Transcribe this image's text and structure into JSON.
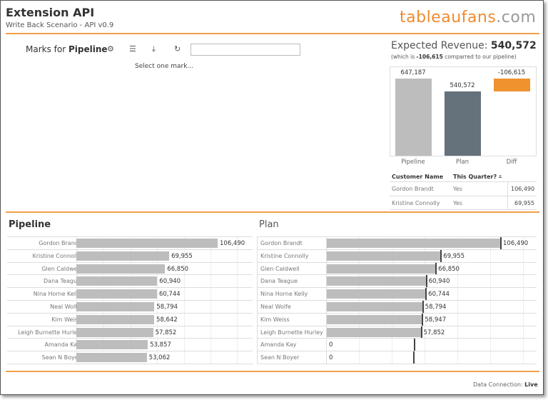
{
  "header": {
    "title": "Extension API",
    "subtitle": "Write Back Scenario - API v0.9",
    "logo_main": "tableaufans",
    "logo_suffix": ".com"
  },
  "toolbar": {
    "marks_prefix": "Marks for",
    "marks_sheet": "Pipeline",
    "icons": [
      "gear-icon",
      "list-icon",
      "download-icon",
      "refresh-icon"
    ],
    "search_value": "",
    "status": "Select one mark..."
  },
  "summary": {
    "label": "Expected Revenue:",
    "value": "540,572",
    "sub_prefix": "(which is",
    "sub_value": "-106,615",
    "sub_suffix": "comparred to our pipeline)"
  },
  "chart_data": [
    {
      "type": "bar",
      "categories": [
        "Pipeline",
        "Plan",
        "Diff"
      ],
      "values": [
        647187,
        540572,
        -106615
      ],
      "labels": [
        "647,187",
        "540,572",
        "-106,615"
      ],
      "colors": [
        "#bdbdbd",
        "#65717b",
        "#f0922e"
      ]
    },
    {
      "type": "bar",
      "title": "Pipeline",
      "categories": [
        "Gordon Brandt",
        "Kristine Connolly",
        "Glen Caldwell",
        "Dana Teague",
        "Nina Horne Kelly",
        "Neal Wolfe",
        "Kim Weiss",
        "Leigh Burnette Hurley",
        "Amanda Kay",
        "Sean N Boyer"
      ],
      "values": [
        106490,
        69955,
        66850,
        60940,
        60744,
        58794,
        58642,
        57852,
        53857,
        53062
      ],
      "labels": [
        "106,490",
        "69,955",
        "66,850",
        "60,940",
        "60,744",
        "58,794",
        "58,642",
        "57,852",
        "53,857",
        "53,062"
      ]
    },
    {
      "type": "bar",
      "title": "Plan",
      "categories": [
        "Gordon Brandt",
        "Kristine Connolly",
        "Glen Caldwell",
        "Dana Teague",
        "Nina Horne Kelly",
        "Neal Wolfe",
        "Kim Weiss",
        "Leigh Burnette Hurley",
        "Amanda Kay",
        "Sean N Boyer"
      ],
      "values": [
        106490,
        69955,
        66850,
        60940,
        60744,
        58794,
        58947,
        57852,
        0,
        0
      ],
      "reference": [
        106490,
        69955,
        66850,
        60940,
        60744,
        58794,
        58642,
        57852,
        53857,
        53062
      ],
      "labels": [
        "106,490",
        "69,955",
        "66,850",
        "60,940",
        "60,744",
        "58,794",
        "58,947",
        "57,852",
        "0",
        "0"
      ]
    }
  ],
  "table": {
    "headers": [
      "Customer Name",
      "This Quarter?"
    ],
    "rows": [
      [
        "Gordon Brandt",
        "Yes",
        "106,490"
      ],
      [
        "Kristine Connolly",
        "Yes",
        "69,955"
      ]
    ]
  },
  "footer": {
    "label": "Data Connection:",
    "value": "Live"
  },
  "colors": {
    "accent": "#f0a04b"
  }
}
